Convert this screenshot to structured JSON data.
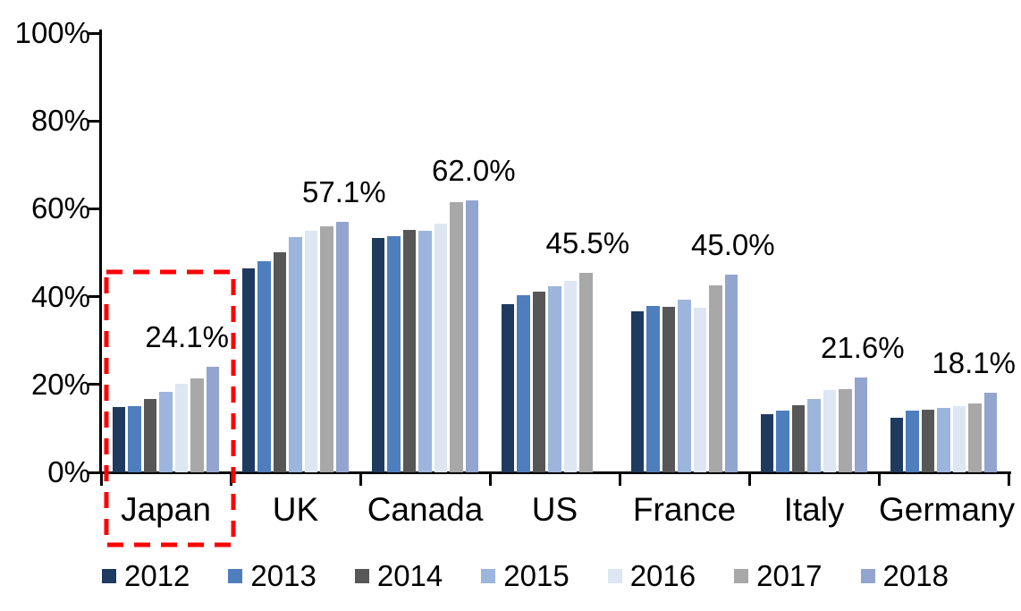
{
  "chart_data": {
    "type": "bar",
    "title": "",
    "xlabel": "",
    "ylabel": "",
    "categories": [
      "Japan",
      "UK",
      "Canada",
      "US",
      "France",
      "Italy",
      "Germany"
    ],
    "series": [
      {
        "name": "2012",
        "color": "#1F3A5F",
        "values": [
          14.9,
          46.5,
          53.4,
          38.4,
          36.7,
          13.2,
          12.4
        ]
      },
      {
        "name": "2013",
        "color": "#4E7EBD",
        "values": [
          15.0,
          48.0,
          53.7,
          40.3,
          37.8,
          14.0,
          14.0
        ]
      },
      {
        "name": "2014",
        "color": "#575757",
        "values": [
          16.7,
          50.2,
          55.3,
          41.2,
          37.6,
          15.2,
          14.2
        ]
      },
      {
        "name": "2015",
        "color": "#9CB5DC",
        "values": [
          18.4,
          53.5,
          55.1,
          42.4,
          39.3,
          16.7,
          14.6
        ]
      },
      {
        "name": "2016",
        "color": "#DDE6F2",
        "values": [
          20.1,
          55.0,
          56.7,
          43.6,
          37.4,
          18.8,
          15.0
        ]
      },
      {
        "name": "2017",
        "color": "#A8A8A8",
        "values": [
          21.4,
          56.1,
          61.5,
          45.5,
          42.5,
          19.0,
          15.6
        ]
      },
      {
        "name": "2018",
        "color": "#93A5CF",
        "values": [
          24.1,
          57.1,
          62.0,
          null,
          45.0,
          21.6,
          18.1
        ]
      }
    ],
    "data_labels": [
      "24.1%",
      "57.1%",
      "62.0%",
      "45.5%",
      "45.0%",
      "21.6%",
      "18.1%"
    ],
    "y_axis": {
      "ticks": [
        "0%",
        "20%",
        "40%",
        "60%",
        "80%",
        "100%"
      ],
      "min": 0,
      "max": 100
    },
    "grid": false,
    "legend": {
      "position": "bottom",
      "entries": [
        "2012",
        "2013",
        "2014",
        "2015",
        "2016",
        "2017",
        "2018"
      ]
    },
    "highlight": {
      "shape": "dashed-rectangle",
      "color": "#FF0000",
      "category": "Japan"
    }
  }
}
